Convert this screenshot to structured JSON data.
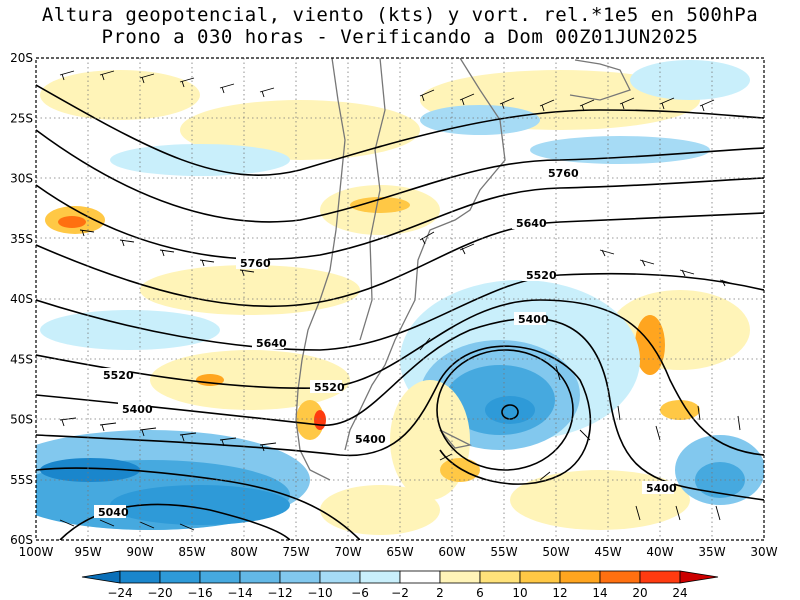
{
  "title": {
    "line1": "Altura geopotencial, viento (kts) y vort. rel.*1e5 en 500hPa",
    "line2": "Prono a 030 horas - Verificando a Dom 00Z01JUN2025"
  },
  "axes": {
    "lat_labels": [
      "20S",
      "25S",
      "30S",
      "35S",
      "40S",
      "45S",
      "50S",
      "55S",
      "60S"
    ],
    "lon_labels": [
      "100W",
      "95W",
      "90W",
      "85W",
      "80W",
      "75W",
      "70W",
      "65W",
      "60W",
      "55W",
      "50W",
      "45W",
      "40W",
      "35W",
      "30W"
    ]
  },
  "contours": [
    {
      "label": "5760",
      "level": 5760
    },
    {
      "label": "5760",
      "level": 5760
    },
    {
      "label": "5640",
      "level": 5640
    },
    {
      "label": "5640",
      "level": 5640
    },
    {
      "label": "5520",
      "level": 5520
    },
    {
      "label": "5520",
      "level": 5520
    },
    {
      "label": "5520",
      "level": 5520
    },
    {
      "label": "5400",
      "level": 5400
    },
    {
      "label": "5400",
      "level": 5400
    },
    {
      "label": "5400",
      "level": 5400
    },
    {
      "label": "5400",
      "level": 5400
    },
    {
      "label": "5040",
      "level": 5040
    }
  ],
  "colorbar": {
    "labels": [
      "-24",
      "-20",
      "-16",
      "-14",
      "-12",
      "-10",
      "-6",
      "-2",
      "2",
      "6",
      "10",
      "12",
      "14",
      "20",
      "24"
    ],
    "colors": [
      "#0a6fb8",
      "#1a86cc",
      "#2e9ad8",
      "#46a9df",
      "#63b8e6",
      "#82c8ee",
      "#a6dbf5",
      "#c9effb",
      "#ffffff",
      "#fff4b8",
      "#ffe27a",
      "#ffc845",
      "#ffa51f",
      "#ff7010",
      "#ff3b10",
      "#cc0000"
    ]
  }
}
